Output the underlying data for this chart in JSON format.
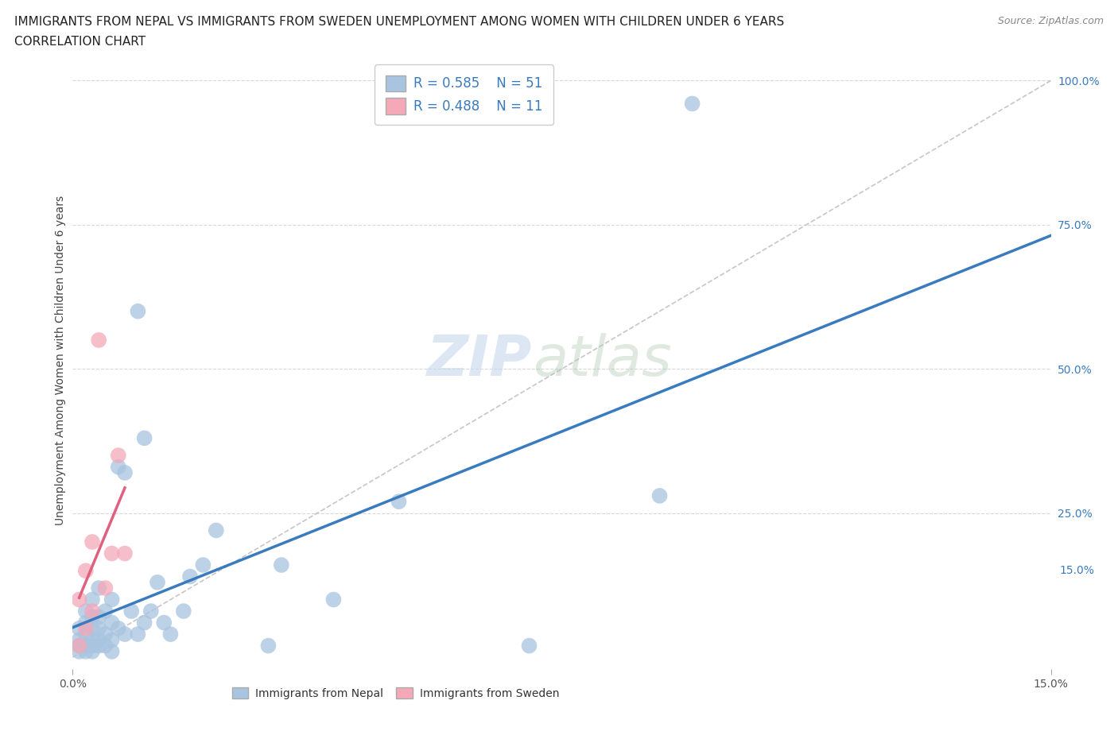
{
  "title_line1": "IMMIGRANTS FROM NEPAL VS IMMIGRANTS FROM SWEDEN UNEMPLOYMENT AMONG WOMEN WITH CHILDREN UNDER 6 YEARS",
  "title_line2": "CORRELATION CHART",
  "source": "Source: ZipAtlas.com",
  "ylabel": "Unemployment Among Women with Children Under 6 years",
  "xlim": [
    0.0,
    0.15
  ],
  "ylim": [
    -0.02,
    1.05
  ],
  "nepal_R": 0.585,
  "nepal_N": 51,
  "sweden_R": 0.488,
  "sweden_N": 11,
  "nepal_color": "#a8c4e0",
  "sweden_color": "#f4a8b8",
  "nepal_line_color": "#3a7bbf",
  "sweden_line_color": "#e06080",
  "refline_color": "#c0c0c0",
  "background_color": "#ffffff",
  "watermark_zip": "ZIP",
  "watermark_atlas": "atlas",
  "nepal_scatter_x": [
    0.001,
    0.001,
    0.001,
    0.001,
    0.002,
    0.002,
    0.002,
    0.002,
    0.002,
    0.003,
    0.003,
    0.003,
    0.003,
    0.003,
    0.003,
    0.004,
    0.004,
    0.004,
    0.004,
    0.004,
    0.005,
    0.005,
    0.005,
    0.006,
    0.006,
    0.006,
    0.006,
    0.007,
    0.007,
    0.008,
    0.008,
    0.009,
    0.01,
    0.01,
    0.011,
    0.011,
    0.012,
    0.013,
    0.014,
    0.015,
    0.017,
    0.018,
    0.02,
    0.022,
    0.03,
    0.032,
    0.04,
    0.05,
    0.07,
    0.09,
    0.095
  ],
  "nepal_scatter_y": [
    0.01,
    0.02,
    0.03,
    0.05,
    0.01,
    0.02,
    0.04,
    0.06,
    0.08,
    0.01,
    0.02,
    0.03,
    0.05,
    0.07,
    0.1,
    0.02,
    0.03,
    0.05,
    0.07,
    0.12,
    0.02,
    0.04,
    0.08,
    0.01,
    0.03,
    0.06,
    0.1,
    0.05,
    0.33,
    0.04,
    0.32,
    0.08,
    0.04,
    0.6,
    0.06,
    0.38,
    0.08,
    0.13,
    0.06,
    0.04,
    0.08,
    0.14,
    0.16,
    0.22,
    0.02,
    0.16,
    0.1,
    0.27,
    0.02,
    0.28,
    0.96
  ],
  "sweden_scatter_x": [
    0.001,
    0.001,
    0.002,
    0.002,
    0.003,
    0.003,
    0.004,
    0.005,
    0.006,
    0.007,
    0.008
  ],
  "sweden_scatter_y": [
    0.02,
    0.1,
    0.05,
    0.15,
    0.08,
    0.2,
    0.55,
    0.12,
    0.18,
    0.35,
    0.18
  ],
  "ytick_vals_right": [
    1.0,
    0.75,
    0.5,
    0.25
  ],
  "ytick_labels_right": [
    "100.0%",
    "75.0%",
    "50.0%",
    "25.0%"
  ],
  "ytick_val_bottom_right": 0.15,
  "ytick_label_bottom_right": "15.0%",
  "grid_color": "#d8d8d8",
  "title_fontsize": 11,
  "subtitle_fontsize": 11,
  "source_fontsize": 9,
  "axis_label_fontsize": 10,
  "tick_fontsize": 10,
  "legend_fontsize": 12
}
